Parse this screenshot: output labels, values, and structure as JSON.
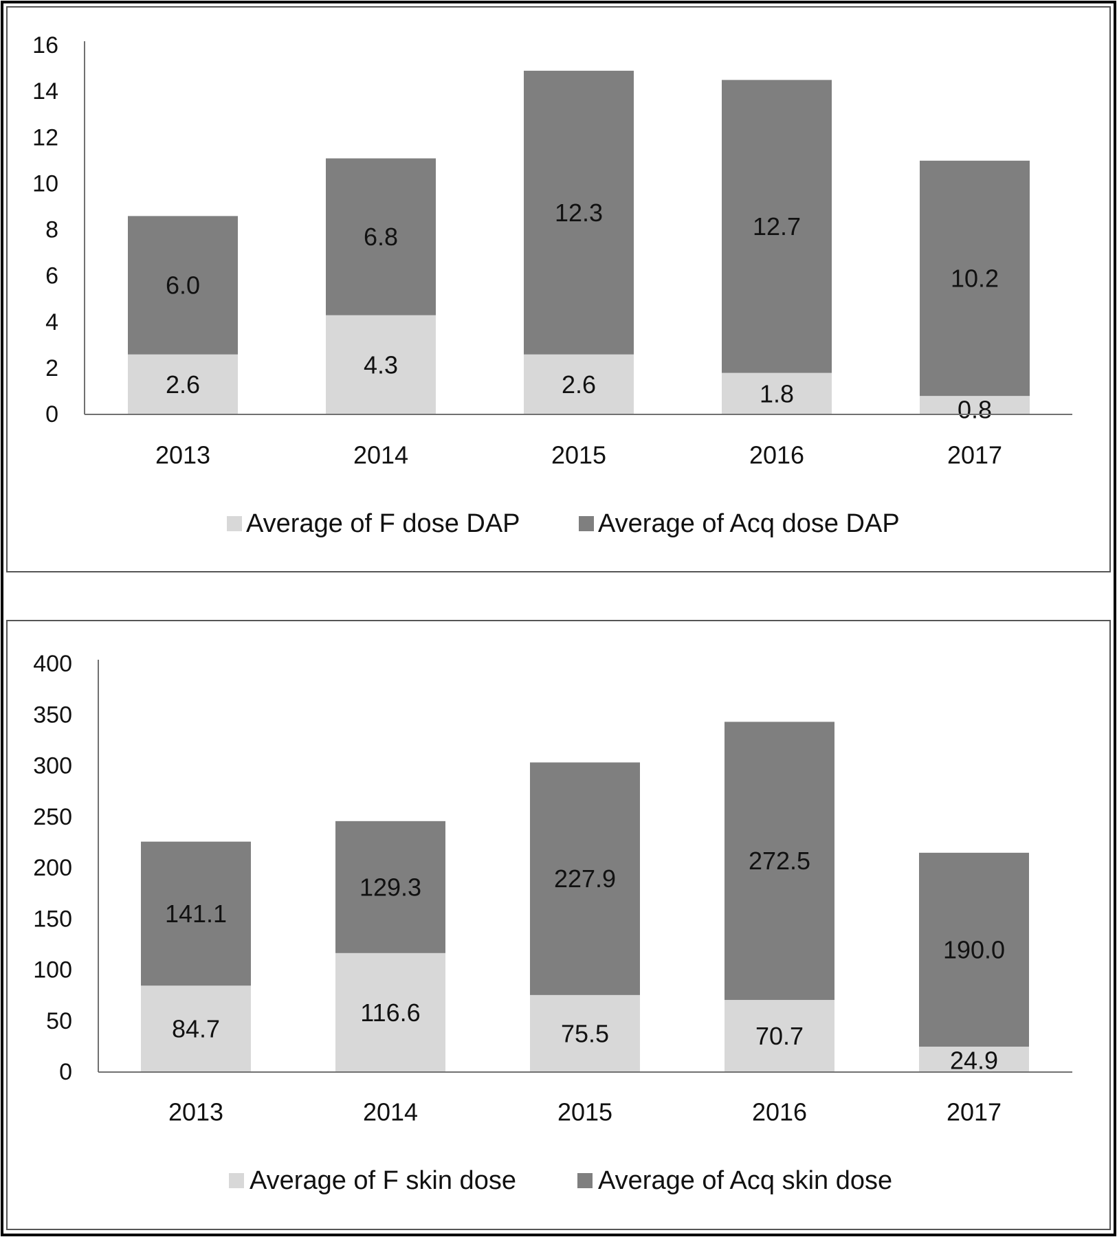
{
  "colors": {
    "background": "#ffffff",
    "border": "#000000",
    "panel_border": "#555555",
    "axis": "#707070",
    "f_series": "#d8d8d8",
    "acq_series": "#7f7f7f",
    "text": "#111111"
  },
  "chart_data": [
    {
      "type": "bar",
      "stacked": true,
      "title": "",
      "xlabel": "",
      "ylabel": "",
      "categories": [
        "2013",
        "2014",
        "2015",
        "2016",
        "2017"
      ],
      "ylim": [
        0,
        16
      ],
      "yticks": [
        "0",
        "2",
        "4",
        "6",
        "8",
        "10",
        "12",
        "14",
        "16"
      ],
      "grid": false,
      "legend_position": "bottom",
      "series": [
        {
          "name": "Average of F dose DAP",
          "values": [
            2.6,
            4.3,
            2.6,
            1.8,
            0.8
          ],
          "labels": [
            "2.6",
            "4.3",
            "2.6",
            "1.8",
            "0.8"
          ],
          "color": "#d8d8d8"
        },
        {
          "name": "Average of Acq dose DAP",
          "values": [
            6.0,
            6.8,
            12.3,
            12.7,
            10.2
          ],
          "labels": [
            "6.0",
            "6.8",
            "12.3",
            "12.7",
            "10.2"
          ],
          "color": "#7f7f7f"
        }
      ]
    },
    {
      "type": "bar",
      "stacked": true,
      "title": "",
      "xlabel": "",
      "ylabel": "",
      "categories": [
        "2013",
        "2014",
        "2015",
        "2016",
        "2017"
      ],
      "ylim": [
        0,
        400
      ],
      "yticks": [
        "0",
        "50",
        "100",
        "150",
        "200",
        "250",
        "300",
        "350",
        "400"
      ],
      "grid": false,
      "legend_position": "bottom",
      "series": [
        {
          "name": "Average of F skin dose",
          "values": [
            84.7,
            116.6,
            75.5,
            70.7,
            24.9
          ],
          "labels": [
            "84.7",
            "116.6",
            "75.5",
            "70.7",
            "24.9"
          ],
          "color": "#d8d8d8"
        },
        {
          "name": "Average of Acq skin dose",
          "values": [
            141.1,
            129.3,
            227.9,
            272.5,
            190.0
          ],
          "labels": [
            "141.1",
            "129.3",
            "227.9",
            "272.5",
            "190.0"
          ],
          "color": "#7f7f7f"
        }
      ]
    }
  ]
}
